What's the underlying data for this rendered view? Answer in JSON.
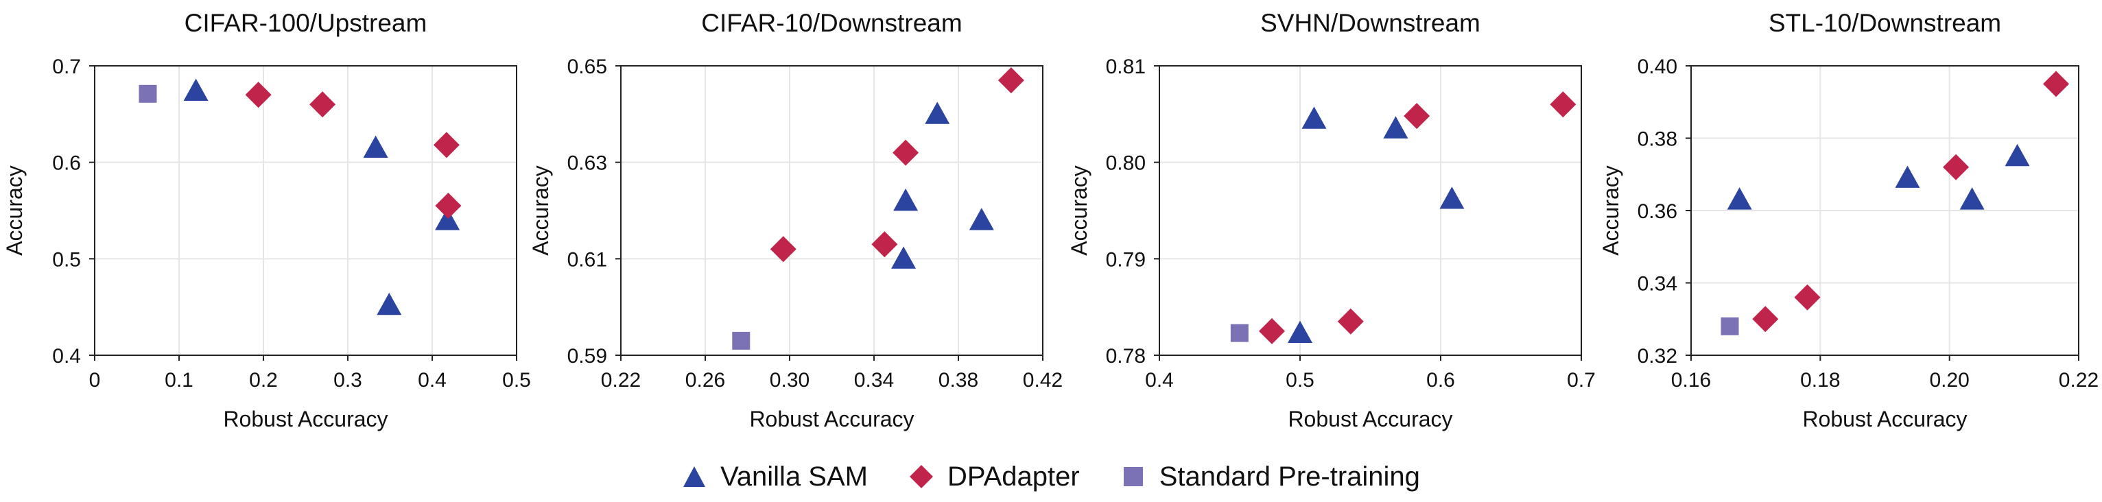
{
  "legend": {
    "vanilla": "Vanilla SAM",
    "dpadapter": "DPAdapter",
    "standard": "Standard Pre-training"
  },
  "colors": {
    "vanilla": "#2a44a0",
    "dpadapter": "#c0244a",
    "standard": "#7b72b5",
    "grid": "#e6e6e6",
    "axis": "#222222"
  },
  "chart_data": [
    {
      "type": "scatter",
      "title": "CIFAR-100/Upstream",
      "xlabel": "Robust Accuracy",
      "ylabel": "Accuracy",
      "xlim": [
        0,
        0.5
      ],
      "ylim": [
        0.4,
        0.7
      ],
      "xticks": [
        0,
        0.1,
        0.2,
        0.3,
        0.4,
        0.5
      ],
      "xtick_labels": [
        "0",
        "0.1",
        "0.2",
        "0.3",
        "0.4",
        "0.5"
      ],
      "yticks": [
        0.4,
        0.5,
        0.6,
        0.7
      ],
      "ytick_labels": [
        "0.4",
        "0.5",
        "0.6",
        "0.7"
      ],
      "series": [
        {
          "name": "Vanilla SAM",
          "marker": "triangle",
          "points": [
            [
              0.12,
              0.674
            ],
            [
              0.333,
              0.615
            ],
            [
              0.418,
              0.54
            ],
            [
              0.349,
              0.452
            ]
          ]
        },
        {
          "name": "DPAdapter",
          "marker": "diamond",
          "points": [
            [
              0.194,
              0.67
            ],
            [
              0.27,
              0.66
            ],
            [
              0.417,
              0.618
            ],
            [
              0.419,
              0.555
            ]
          ]
        },
        {
          "name": "Standard Pre-training",
          "marker": "square",
          "points": [
            [
              0.063,
              0.671
            ]
          ]
        }
      ]
    },
    {
      "type": "scatter",
      "title": "CIFAR-10/Downstream",
      "xlabel": "Robust Accuracy",
      "ylabel": "Accuracy",
      "xlim": [
        0.22,
        0.42
      ],
      "ylim": [
        0.59,
        0.65
      ],
      "xticks": [
        0.22,
        0.26,
        0.3,
        0.34,
        0.38,
        0.42
      ],
      "xtick_labels": [
        "0.22",
        "0.26",
        "0.30",
        "0.34",
        "0.38",
        "0.42"
      ],
      "yticks": [
        0.59,
        0.61,
        0.63,
        0.65
      ],
      "ytick_labels": [
        "0.59",
        "0.61",
        "0.63",
        "0.65"
      ],
      "series": [
        {
          "name": "Vanilla SAM",
          "marker": "triangle",
          "points": [
            [
              0.37,
              0.64
            ],
            [
              0.355,
              0.622
            ],
            [
              0.391,
              0.618
            ],
            [
              0.354,
              0.61
            ]
          ]
        },
        {
          "name": "DPAdapter",
          "marker": "diamond",
          "points": [
            [
              0.405,
              0.647
            ],
            [
              0.355,
              0.632
            ],
            [
              0.297,
              0.612
            ],
            [
              0.345,
              0.613
            ]
          ]
        },
        {
          "name": "Standard Pre-training",
          "marker": "square",
          "points": [
            [
              0.277,
              0.593
            ]
          ]
        }
      ]
    },
    {
      "type": "scatter",
      "title": "SVHN/Downstream",
      "xlabel": "Robust Accuracy",
      "ylabel": "Accuracy",
      "xlim": [
        0.4,
        0.7
      ],
      "ylim": [
        0.78,
        0.81
      ],
      "xticks": [
        0.4,
        0.5,
        0.6,
        0.7
      ],
      "xtick_labels": [
        "0.4",
        "0.5",
        "0.6",
        "0.7"
      ],
      "yticks": [
        0.78,
        0.79,
        0.8,
        0.81
      ],
      "ytick_labels": [
        "0.78",
        "0.79",
        "0.80",
        "0.81"
      ],
      "series": [
        {
          "name": "Vanilla SAM",
          "marker": "triangle",
          "points": [
            [
              0.51,
              0.8045
            ],
            [
              0.568,
              0.8035
            ],
            [
              0.608,
              0.7962
            ],
            [
              0.5,
              0.7823
            ]
          ]
        },
        {
          "name": "DPAdapter",
          "marker": "diamond",
          "points": [
            [
              0.583,
              0.8048
            ],
            [
              0.687,
              0.806
            ],
            [
              0.48,
              0.7825
            ],
            [
              0.536,
              0.7835
            ]
          ]
        },
        {
          "name": "Standard Pre-training",
          "marker": "square",
          "points": [
            [
              0.457,
              0.7823
            ]
          ]
        }
      ]
    },
    {
      "type": "scatter",
      "title": "STL-10/Downstream",
      "xlabel": "Robust Accuracy",
      "ylabel": "Accuracy",
      "xlim": [
        0.16,
        0.22
      ],
      "ylim": [
        0.32,
        0.4
      ],
      "xticks": [
        0.16,
        0.18,
        0.2,
        0.22
      ],
      "xtick_labels": [
        "0.16",
        "0.18",
        "0.20",
        "0.22"
      ],
      "yticks": [
        0.32,
        0.34,
        0.36,
        0.38,
        0.4
      ],
      "ytick_labels": [
        "0.32",
        "0.34",
        "0.36",
        "0.38",
        "0.40"
      ],
      "series": [
        {
          "name": "Vanilla SAM",
          "marker": "triangle",
          "points": [
            [
              0.1675,
              0.363
            ],
            [
              0.1935,
              0.369
            ],
            [
              0.2035,
              0.363
            ],
            [
              0.2105,
              0.375
            ]
          ]
        },
        {
          "name": "DPAdapter",
          "marker": "diamond",
          "points": [
            [
              0.2165,
              0.395
            ],
            [
              0.201,
              0.372
            ],
            [
              0.178,
              0.336
            ],
            [
              0.1715,
              0.33
            ]
          ]
        },
        {
          "name": "Standard Pre-training",
          "marker": "square",
          "points": [
            [
              0.166,
              0.328
            ]
          ]
        }
      ]
    }
  ]
}
